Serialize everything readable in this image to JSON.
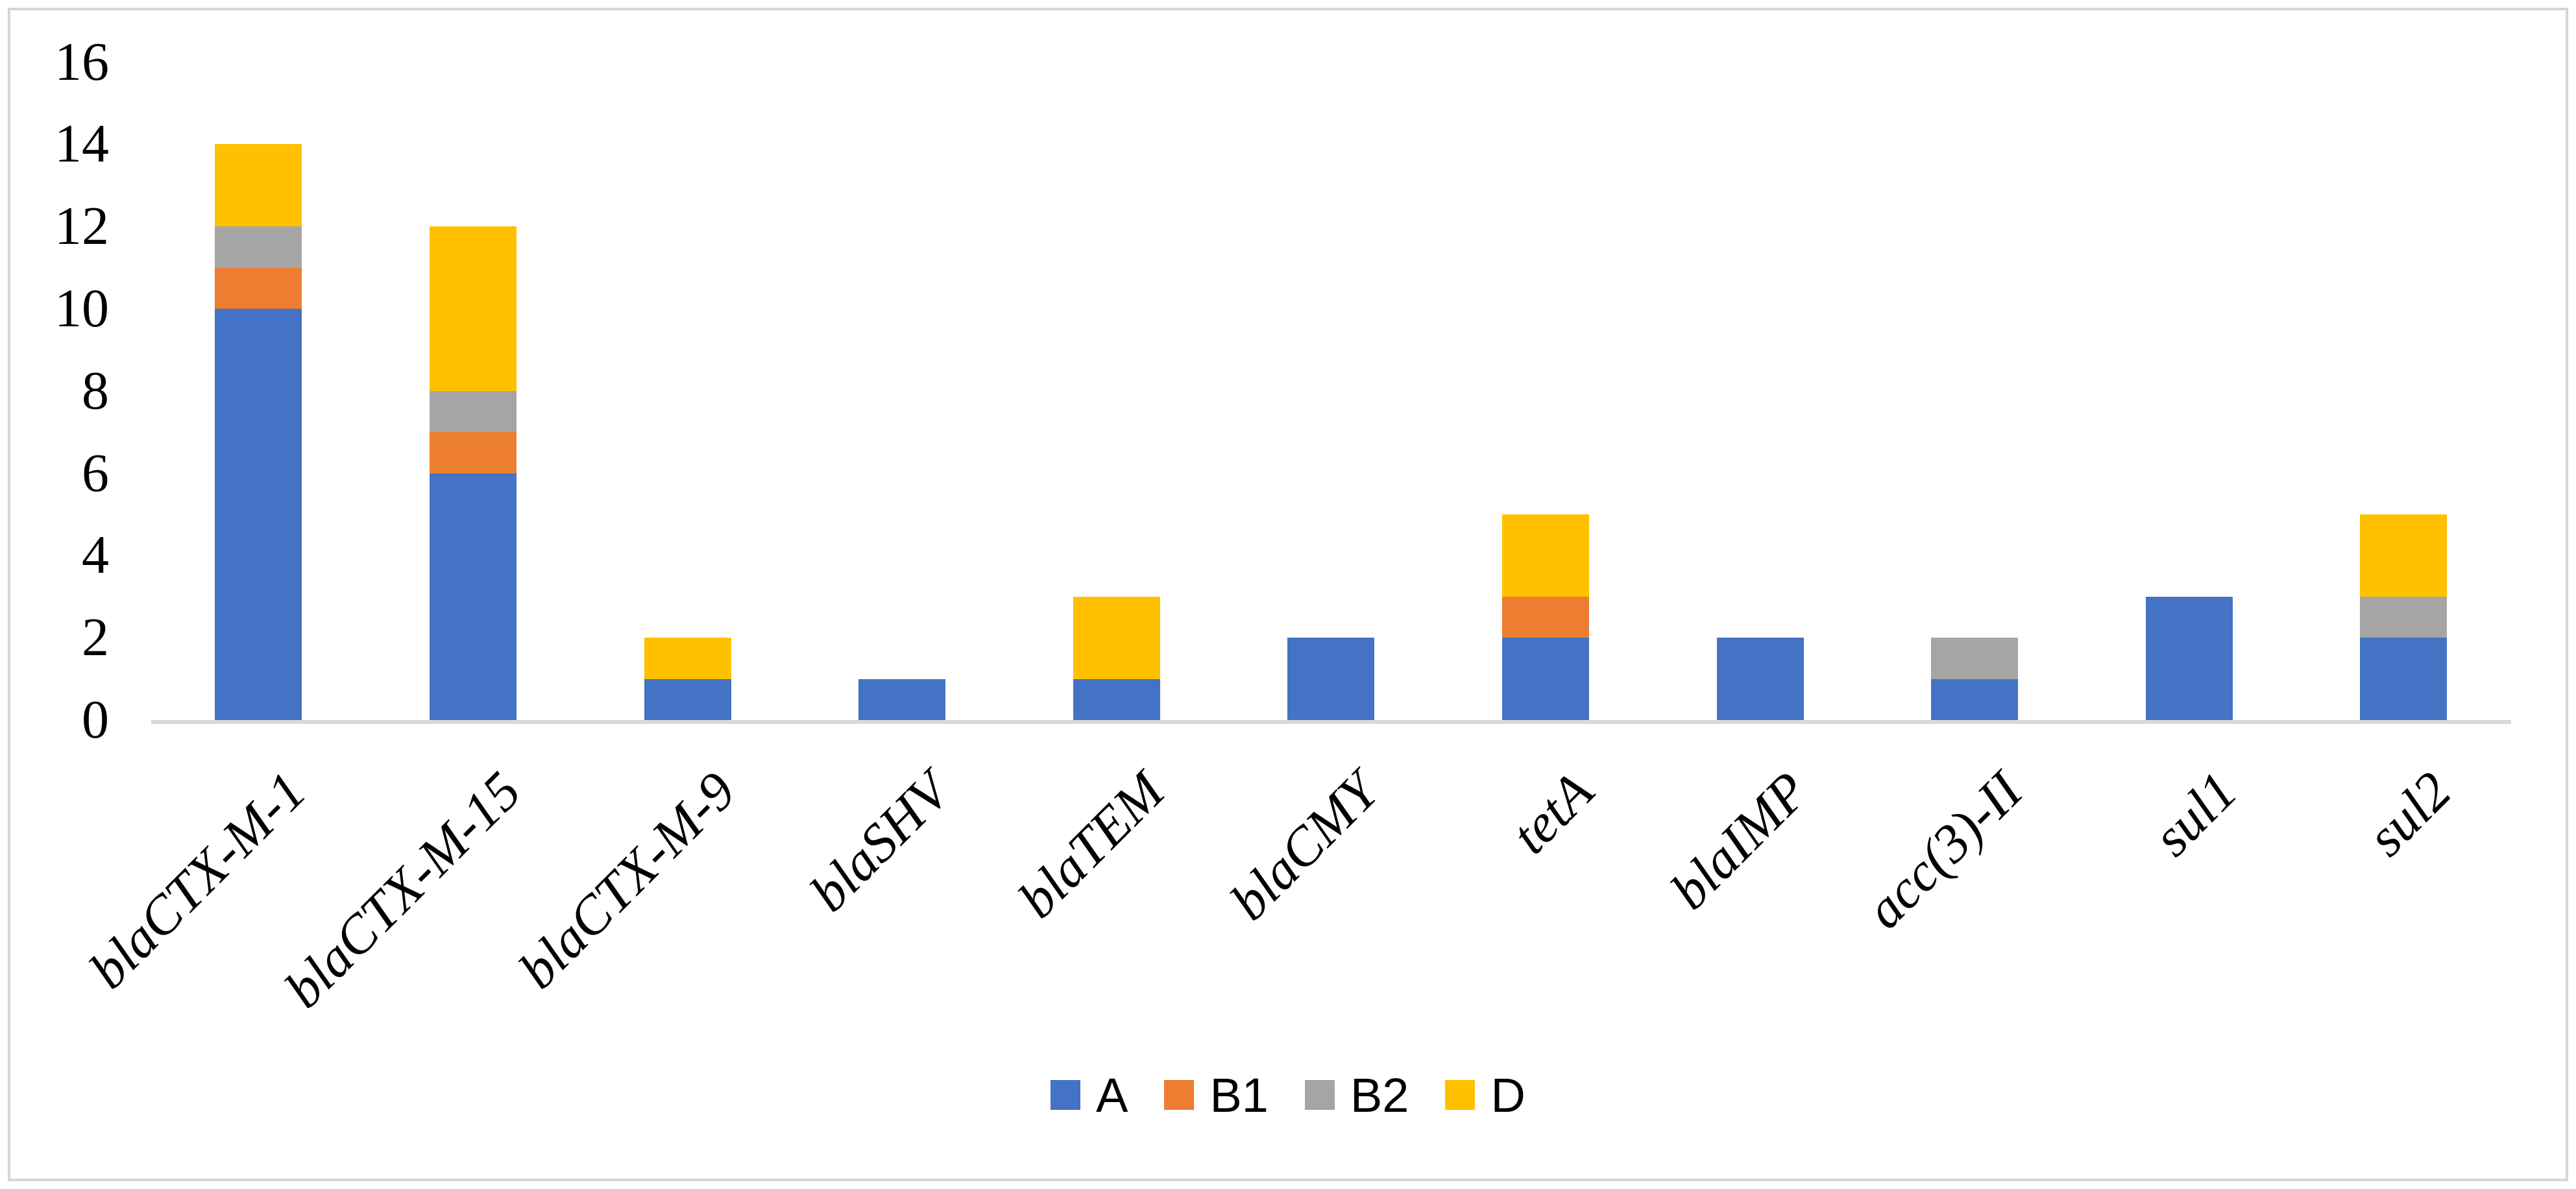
{
  "chart_data": {
    "type": "bar",
    "stacked": true,
    "title": "",
    "categories": [
      "blaCTX-M-1",
      "blaCTX-M-15",
      "blaCTX-M-9",
      "blaSHV",
      "blaTEM",
      "blaCMY",
      "tetA",
      "blaIMP",
      "acc(3)-II",
      "sul1",
      "sul2"
    ],
    "series": [
      {
        "name": "A",
        "color": "#4472C4",
        "values": [
          10,
          6,
          1,
          1,
          1,
          2,
          2,
          2,
          1,
          3,
          2
        ]
      },
      {
        "name": "B1",
        "color": "#ED7D31",
        "values": [
          1,
          1,
          0,
          0,
          0,
          0,
          1,
          0,
          0,
          0,
          0
        ]
      },
      {
        "name": "B2",
        "color": "#A5A5A5",
        "values": [
          1,
          1,
          0,
          0,
          0,
          0,
          0,
          0,
          1,
          0,
          1
        ]
      },
      {
        "name": "D",
        "color": "#FFC000",
        "values": [
          2,
          4,
          1,
          0,
          2,
          0,
          2,
          0,
          0,
          0,
          2
        ]
      }
    ],
    "totals": [
      14,
      12,
      2,
      1,
      3,
      2,
      5,
      2,
      2,
      3,
      5
    ],
    "xlabel": "",
    "ylabel": "",
    "ylim": [
      0,
      16
    ],
    "yticks": [
      0,
      2,
      4,
      6,
      8,
      10,
      12,
      14,
      16
    ],
    "grid": false,
    "legend_position": "bottom",
    "legend_labels": [
      "A",
      "B1",
      "B2",
      "D"
    ],
    "axis_color": "#D9D9D9",
    "category_label_style": "italic-rotated-45"
  }
}
